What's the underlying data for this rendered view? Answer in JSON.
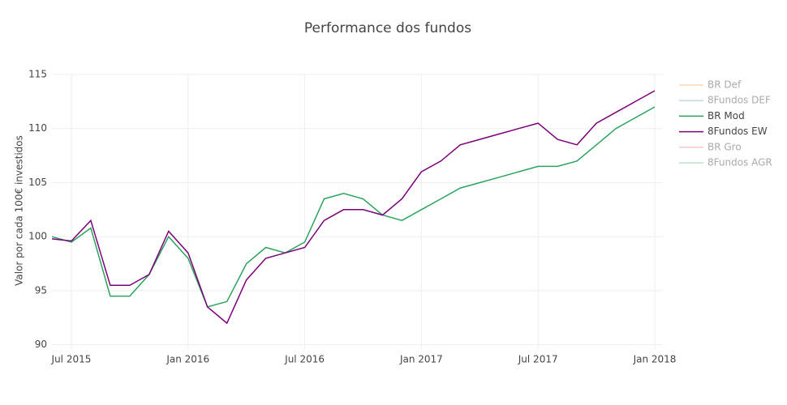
{
  "chart_data": {
    "type": "line",
    "title": "Performance dos fundos",
    "y_label": "Valor por cada 100€ investidos",
    "x": [
      "2015-06",
      "2015-07",
      "2015-08",
      "2015-09",
      "2015-10",
      "2015-11",
      "2015-12",
      "2016-01",
      "2016-02",
      "2016-03",
      "2016-04",
      "2016-05",
      "2016-06",
      "2016-07",
      "2016-08",
      "2016-09",
      "2016-10",
      "2016-11",
      "2016-12",
      "2017-01",
      "2017-02",
      "2017-03",
      "2017-04",
      "2017-05",
      "2017-06",
      "2017-07",
      "2017-08",
      "2017-09",
      "2017-10",
      "2017-11",
      "2017-12",
      "2018-01"
    ],
    "series": [
      {
        "name": "BR Def",
        "color": "#ffbb78",
        "visible": false
      },
      {
        "name": "8Fundos DEF",
        "color": "#9ec0e0",
        "visible": false
      },
      {
        "name": "BR Mod",
        "color": "#2ca25f",
        "visible": true,
        "values": [
          100,
          99.5,
          100.8,
          94.5,
          94.5,
          96.5,
          100,
          98,
          93.5,
          94,
          97.5,
          99,
          98.5,
          99.5,
          103.5,
          104,
          103.5,
          102,
          101.5,
          102.5,
          103.5,
          104.5,
          105,
          105.5,
          106,
          106.5,
          106.5,
          107,
          108.5,
          110,
          111,
          112
        ]
      },
      {
        "name": "8Fundos EW",
        "color": "#7a0177",
        "visible": true,
        "values": [
          99.8,
          99.6,
          101.5,
          95.5,
          95.5,
          96.5,
          100.5,
          98.5,
          93.5,
          92,
          96,
          98,
          98.5,
          99,
          101.5,
          102.5,
          102.5,
          102,
          103.5,
          106,
          107,
          108.5,
          109,
          109.5,
          110,
          110.5,
          109,
          108.5,
          110.5,
          111.5,
          112.5,
          113.5
        ]
      },
      {
        "name": "BR Gro",
        "color": "#f4a6a6",
        "visible": false
      },
      {
        "name": "8Fundos AGR",
        "color": "#8fcfa8",
        "visible": false
      }
    ],
    "xlim": [
      "2015-06",
      "2018-01"
    ],
    "xticks": [
      {
        "value": "2015-07",
        "label": "Jul 2015"
      },
      {
        "value": "2016-01",
        "label": "Jan 2016"
      },
      {
        "value": "2016-07",
        "label": "Jul 2016"
      },
      {
        "value": "2017-01",
        "label": "Jan 2017"
      },
      {
        "value": "2017-07",
        "label": "Jul 2017"
      },
      {
        "value": "2018-01",
        "label": "Jan 2018"
      }
    ],
    "ylim": [
      89.6,
      115
    ],
    "yticks": [
      90,
      95,
      100,
      105,
      110,
      115
    ],
    "grid": true,
    "legend": "right"
  }
}
